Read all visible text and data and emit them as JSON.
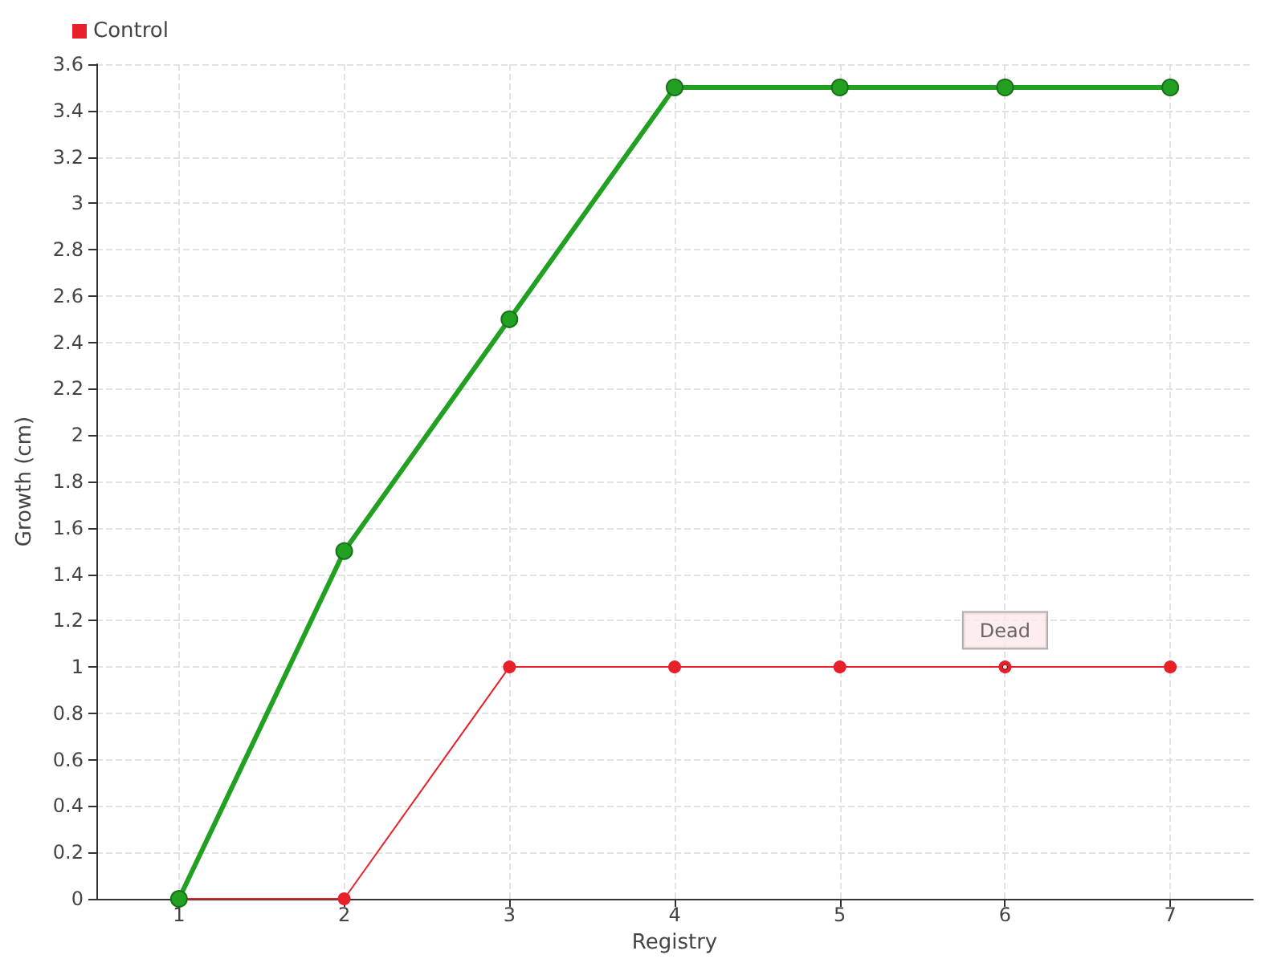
{
  "chart_data": {
    "type": "line",
    "xlabel": "Registry",
    "ylabel": "Growth (cm)",
    "x": [
      1,
      2,
      3,
      4,
      5,
      6,
      7
    ],
    "xlim": [
      0.5,
      7.5
    ],
    "xticks": [
      1,
      2,
      3,
      4,
      5,
      6,
      7
    ],
    "ylim": [
      0,
      3.6
    ],
    "yticks": [
      0,
      0.2,
      0.4,
      0.6,
      0.8,
      1,
      1.2,
      1.4,
      1.6,
      1.8,
      2,
      2.2,
      2.4,
      2.6,
      2.8,
      3,
      3.2,
      3.4,
      3.6
    ],
    "series": [
      {
        "color": "#22a022",
        "values": [
          0,
          1.5,
          2.5,
          3.5,
          3.5,
          3.5,
          3.5
        ]
      },
      {
        "name": "Control",
        "color": "#e8202a",
        "values": [
          0,
          0,
          1,
          1,
          1,
          1,
          1
        ]
      }
    ],
    "annotations": [
      {
        "text": "Dead",
        "x": 6,
        "y": 1
      }
    ],
    "grid": true,
    "legend": "top left",
    "marker": "circle",
    "line_style": "solid"
  }
}
